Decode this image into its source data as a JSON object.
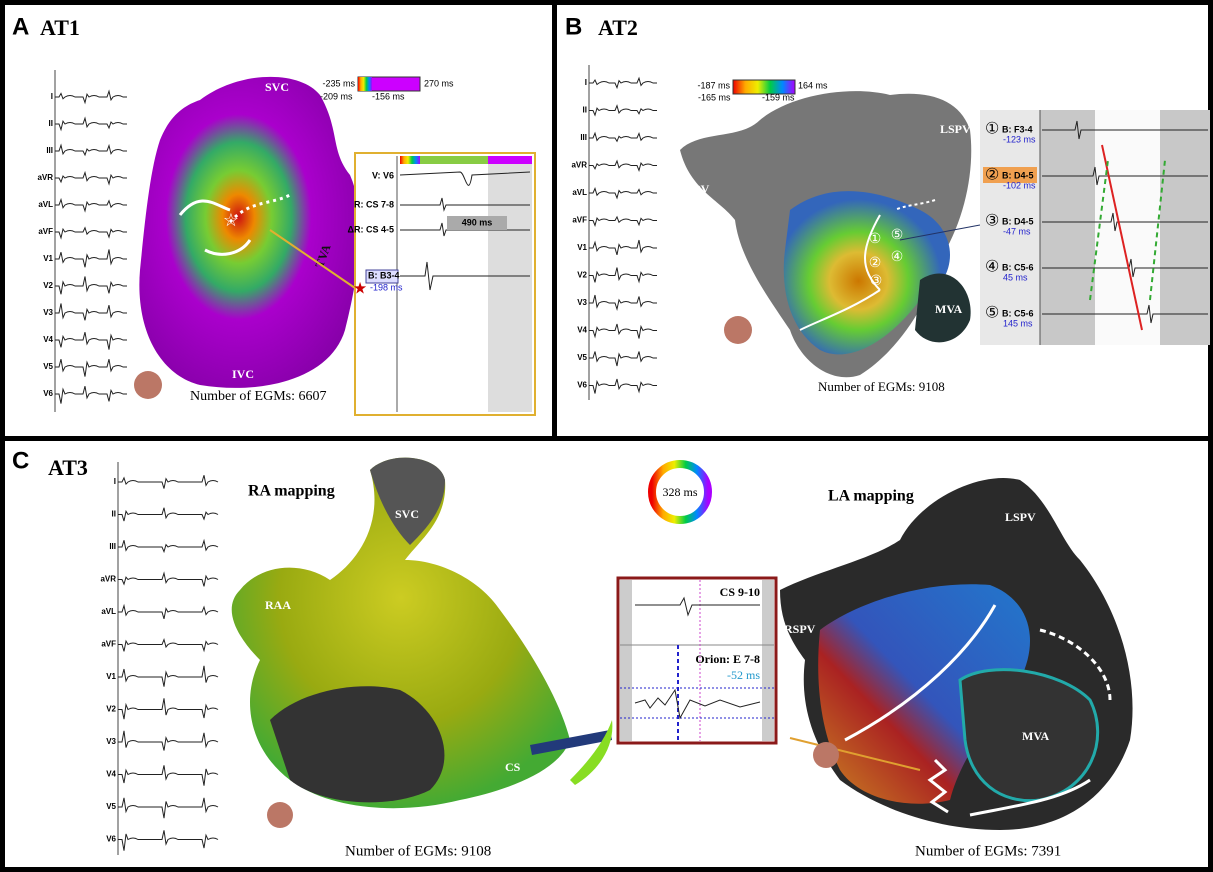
{
  "panel_a": {
    "letter": "A",
    "title": "AT1",
    "leads": [
      "I",
      "II",
      "III",
      "aVR",
      "aVL",
      "aVF",
      "V1",
      "V2",
      "V3",
      "V4",
      "V5",
      "V6"
    ],
    "colorbar": {
      "min": "-235 ms",
      "max": "270 ms",
      "low": "-209 ms",
      "high": "-156 ms"
    },
    "labels": {
      "svc": "SVC",
      "ivc": "IVC",
      "tva": "TVA"
    },
    "inset": {
      "v": "V: V6",
      "r": "R: CS 7-8",
      "dr": "ΔR: CS 4-5",
      "interval": "490 ms",
      "channel": "B: B3-4",
      "time": "-198 ms"
    },
    "egm_count": "Number of EGMs: 6607"
  },
  "panel_b": {
    "letter": "B",
    "title": "AT2",
    "leads": [
      "I",
      "II",
      "III",
      "aVR",
      "aVL",
      "aVF",
      "V1",
      "V2",
      "V3",
      "V4",
      "V5",
      "V6"
    ],
    "colorbar": {
      "min": "-187 ms",
      "max": "164 ms",
      "low": "-165 ms",
      "high": "-159 ms"
    },
    "labels": {
      "lspv": "LSPV",
      "rspv": "RSPV",
      "mva": "MVA"
    },
    "electrograms": [
      {
        "index": "①",
        "channel": "B: F3-4",
        "time": "-123 ms"
      },
      {
        "index": "②",
        "channel": "B: D4-5",
        "time": "-102 ms"
      },
      {
        "index": "③",
        "channel": "B: D4-5",
        "time": "-47 ms"
      },
      {
        "index": "④",
        "channel": "B: C5-6",
        "time": "45 ms"
      },
      {
        "index": "⑤",
        "channel": "B: C5-6",
        "time": "145 ms"
      }
    ],
    "egm_count": "Number of EGMs: 9108"
  },
  "panel_c": {
    "letter": "C",
    "title": "AT3",
    "leads": [
      "I",
      "II",
      "III",
      "aVR",
      "aVL",
      "aVF",
      "V1",
      "V2",
      "V3",
      "V4",
      "V5",
      "V6"
    ],
    "ra_title": "RA mapping",
    "la_title": "LA mapping",
    "labels": {
      "svc": "SVC",
      "raa": "RAA",
      "cs": "CS",
      "lspv": "LSPV",
      "rspv": "RSPV",
      "mva": "MVA"
    },
    "cycle": "328 ms",
    "inset": {
      "cs": "CS 9-10",
      "orion": "Orion: E 7-8",
      "time": "-52 ms"
    },
    "ra_egm_count": "Number of EGMs: 9108",
    "la_egm_count": "Number of EGMs: 7391"
  }
}
